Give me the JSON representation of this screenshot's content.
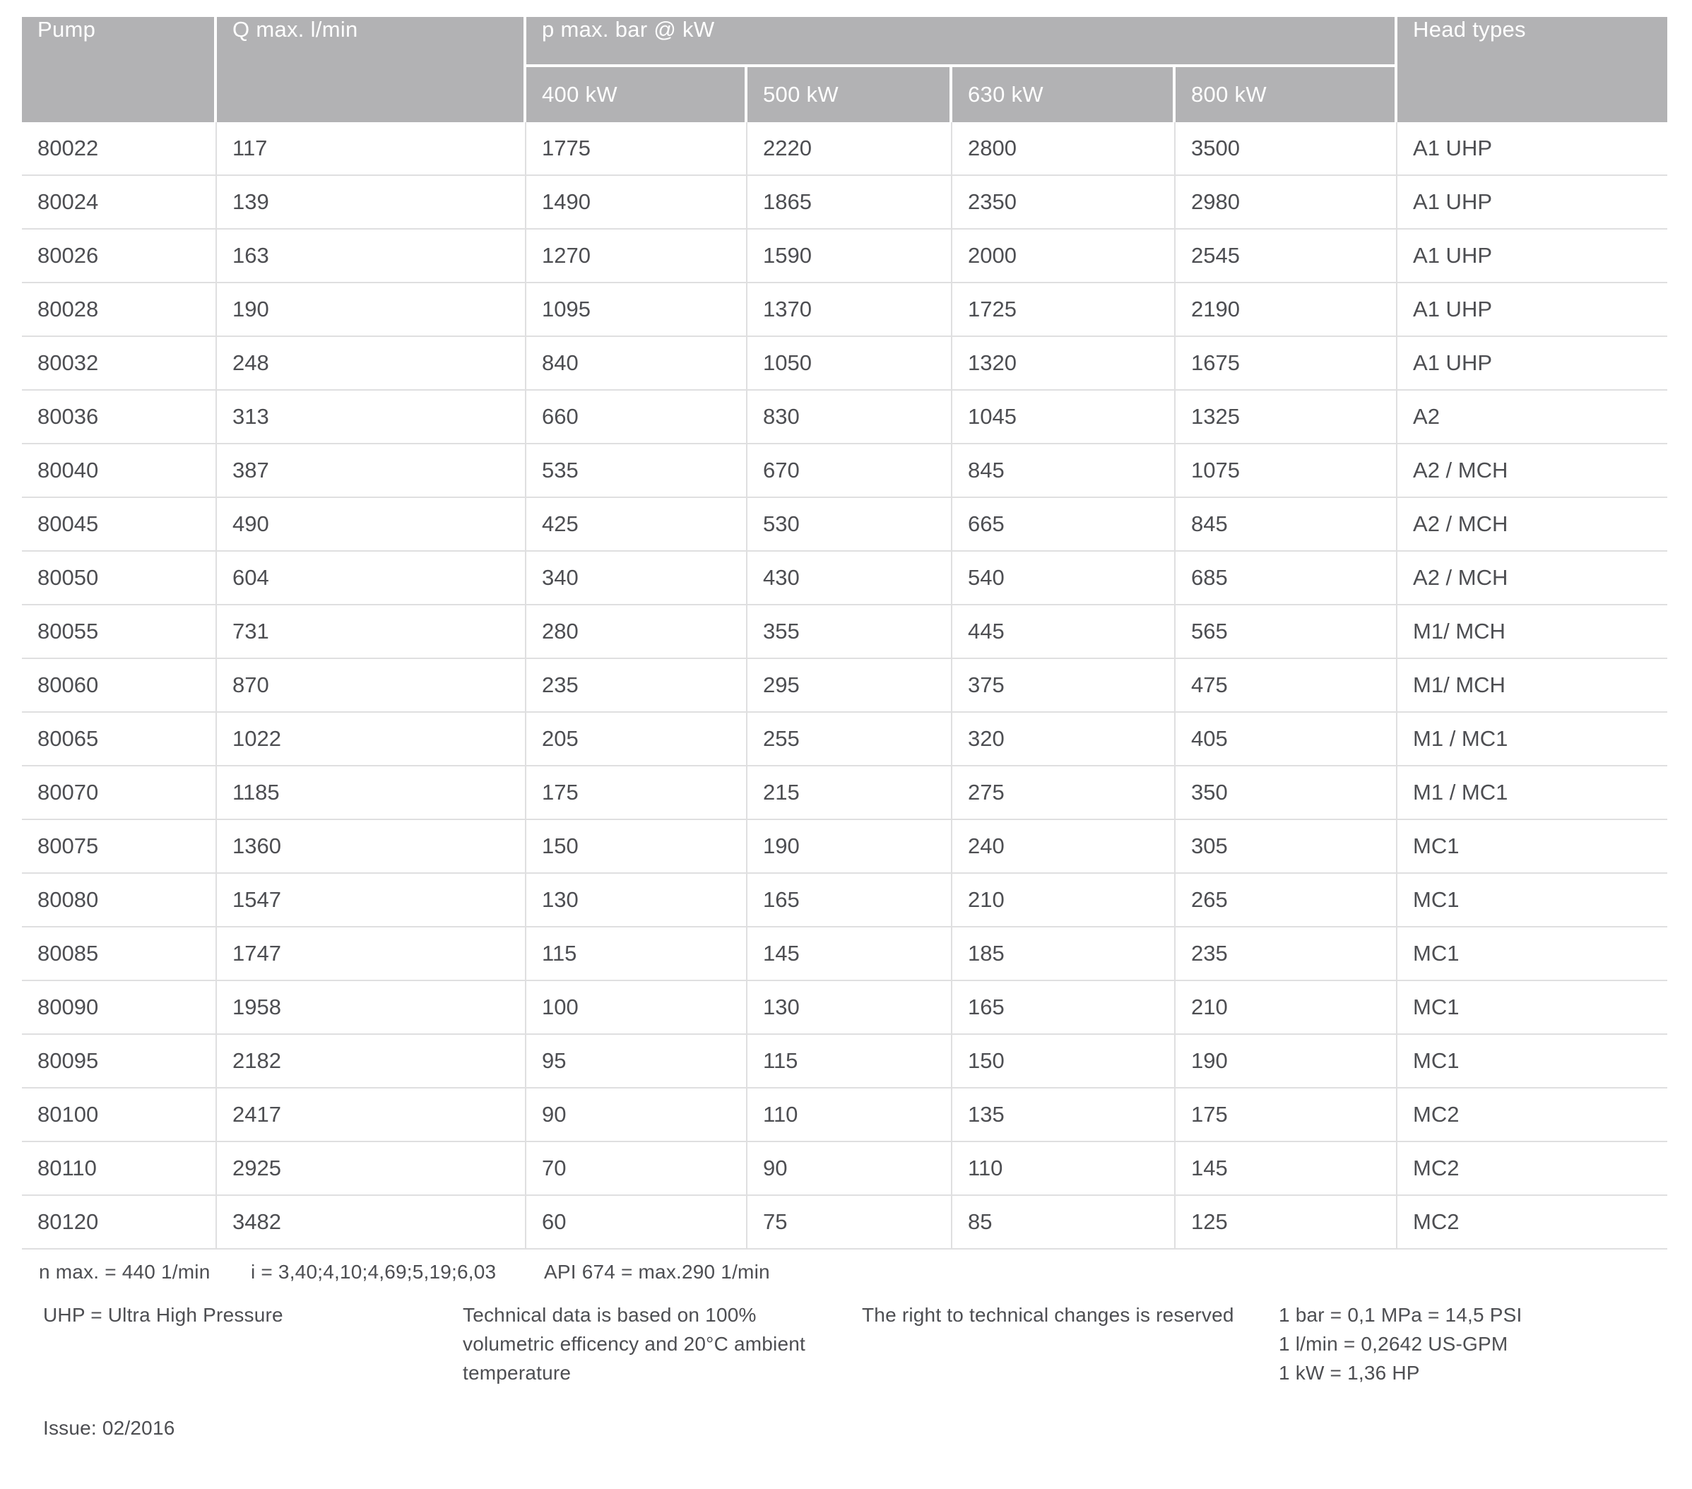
{
  "colors": {
    "header_bg": "#b2b2b4",
    "header_text": "#ffffff",
    "body_text": "#4d4e52",
    "divider": "#dfdfe0"
  },
  "table": {
    "header": {
      "pump": "Pump",
      "q_max": "Q max. l/min",
      "p_max_group": "p max. bar @ kW",
      "kw_columns": [
        "400 kW",
        "500 kW",
        "630 kW",
        "800 kW"
      ],
      "head_types": "Head types"
    },
    "rows": [
      {
        "pump": "80022",
        "q_max": "117",
        "p_400": "1775",
        "p_500": "2220",
        "p_630": "2800",
        "p_800": "3500",
        "head_types": "A1 UHP"
      },
      {
        "pump": "80024",
        "q_max": "139",
        "p_400": "1490",
        "p_500": "1865",
        "p_630": "2350",
        "p_800": "2980",
        "head_types": "A1 UHP"
      },
      {
        "pump": "80026",
        "q_max": "163",
        "p_400": "1270",
        "p_500": "1590",
        "p_630": "2000",
        "p_800": "2545",
        "head_types": "A1 UHP"
      },
      {
        "pump": "80028",
        "q_max": "190",
        "p_400": "1095",
        "p_500": "1370",
        "p_630": "1725",
        "p_800": "2190",
        "head_types": "A1 UHP"
      },
      {
        "pump": "80032",
        "q_max": "248",
        "p_400": "840",
        "p_500": "1050",
        "p_630": "1320",
        "p_800": "1675",
        "head_types": "A1 UHP"
      },
      {
        "pump": "80036",
        "q_max": "313",
        "p_400": "660",
        "p_500": "830",
        "p_630": "1045",
        "p_800": "1325",
        "head_types": "A2"
      },
      {
        "pump": "80040",
        "q_max": "387",
        "p_400": "535",
        "p_500": "670",
        "p_630": "845",
        "p_800": "1075",
        "head_types": "A2 / MCH"
      },
      {
        "pump": "80045",
        "q_max": "490",
        "p_400": "425",
        "p_500": "530",
        "p_630": "665",
        "p_800": "845",
        "head_types": "A2 / MCH"
      },
      {
        "pump": "80050",
        "q_max": "604",
        "p_400": "340",
        "p_500": "430",
        "p_630": "540",
        "p_800": "685",
        "head_types": "A2 / MCH"
      },
      {
        "pump": "80055",
        "q_max": "731",
        "p_400": "280",
        "p_500": "355",
        "p_630": "445",
        "p_800": "565",
        "head_types": "M1/ MCH"
      },
      {
        "pump": "80060",
        "q_max": "870",
        "p_400": "235",
        "p_500": "295",
        "p_630": "375",
        "p_800": "475",
        "head_types": "M1/ MCH"
      },
      {
        "pump": "80065",
        "q_max": "1022",
        "p_400": "205",
        "p_500": "255",
        "p_630": "320",
        "p_800": "405",
        "head_types": "M1 / MC1"
      },
      {
        "pump": "80070",
        "q_max": "1185",
        "p_400": "175",
        "p_500": "215",
        "p_630": "275",
        "p_800": "350",
        "head_types": "M1 / MC1"
      },
      {
        "pump": "80075",
        "q_max": "1360",
        "p_400": "150",
        "p_500": "190",
        "p_630": "240",
        "p_800": "305",
        "head_types": "MC1"
      },
      {
        "pump": "80080",
        "q_max": "1547",
        "p_400": "130",
        "p_500": "165",
        "p_630": "210",
        "p_800": "265",
        "head_types": "MC1"
      },
      {
        "pump": "80085",
        "q_max": "1747",
        "p_400": "115",
        "p_500": "145",
        "p_630": "185",
        "p_800": "235",
        "head_types": "MC1"
      },
      {
        "pump": "80090",
        "q_max": "1958",
        "p_400": "100",
        "p_500": "130",
        "p_630": "165",
        "p_800": "210",
        "head_types": "MC1"
      },
      {
        "pump": "80095",
        "q_max": "2182",
        "p_400": "95",
        "p_500": "115",
        "p_630": "150",
        "p_800": "190",
        "head_types": "MC1"
      },
      {
        "pump": "80100",
        "q_max": "2417",
        "p_400": "90",
        "p_500": "110",
        "p_630": "135",
        "p_800": "175",
        "head_types": "MC2"
      },
      {
        "pump": "80110",
        "q_max": "2925",
        "p_400": "70",
        "p_500": "90",
        "p_630": "110",
        "p_800": "145",
        "head_types": "MC2"
      },
      {
        "pump": "80120",
        "q_max": "3482",
        "p_400": "60",
        "p_500": "75",
        "p_630": "85",
        "p_800": "125",
        "head_types": "MC2"
      }
    ]
  },
  "footnotes": {
    "n_max": "n max. = 440 1/min",
    "i_values": "i = 3,40;4,10;4,69;5,19;6,03",
    "api": "API 674 = max.290 1/min",
    "uhp": "UHP = Ultra High Pressure",
    "technical_note_lines": [
      "Technical data is based on 100%",
      "volumetric efficency and 20°C ambient",
      "temperature"
    ],
    "rights_note": "The right to technical changes is reserved",
    "conversion_lines": [
      "1 bar = 0,1 MPa = 14,5 PSI",
      "1 l/min = 0,2642 US-GPM",
      "1 kW = 1,36 HP"
    ],
    "issue": "Issue: 02/2016"
  }
}
